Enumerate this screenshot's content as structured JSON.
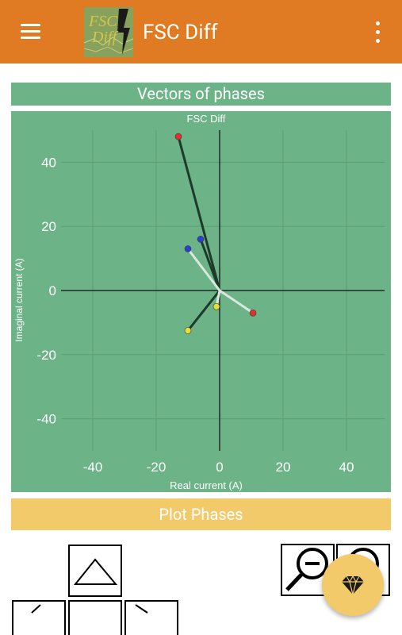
{
  "app": {
    "title": "FSC Diff",
    "logo_text": "FSC Diff"
  },
  "section": {
    "title": "Vectors of phases"
  },
  "chart_data": {
    "type": "scatter",
    "title": "FSC Diff",
    "xlabel": "Real current (A)",
    "ylabel": "Imaginal current (A)",
    "xlim": [
      -50,
      52
    ],
    "ylim": [
      -50,
      50
    ],
    "xticks": [
      -40,
      -20,
      0,
      20,
      40
    ],
    "yticks": [
      -40,
      -20,
      0,
      20,
      40
    ],
    "grid": true,
    "background": "#6db388",
    "vectors": [
      {
        "x": -13,
        "y": 48,
        "color": "#e03030",
        "line": "#1e3a2a"
      },
      {
        "x": -6,
        "y": 16,
        "color": "#2a3fd4",
        "line": "#1e3a2a"
      },
      {
        "x": -10,
        "y": -12.5,
        "color": "#e8e030",
        "line": "#1e3a2a"
      },
      {
        "x": 10.5,
        "y": -7,
        "color": "#e03030",
        "line": "#d8e8dc"
      },
      {
        "x": -10,
        "y": 13,
        "color": "#2a3fd4",
        "line": "#d8e8dc"
      },
      {
        "x": -1,
        "y": -5,
        "color": "#e8e030",
        "line": "#d8e8dc"
      }
    ]
  },
  "actions": {
    "plot_label": "Plot Phases"
  },
  "colors": {
    "appbar": "#e07b24",
    "chart_bg": "#6db388",
    "accent": "#f2ca6a"
  },
  "icons": {
    "menu": "menu-icon",
    "overflow": "more-vert-icon",
    "up": "triangle-up-icon",
    "left": "triangle-left-icon",
    "right": "triangle-right-icon",
    "zoom_out": "zoom-out-icon",
    "zoom_in": "zoom-in-icon",
    "fab": "diamond-icon"
  }
}
